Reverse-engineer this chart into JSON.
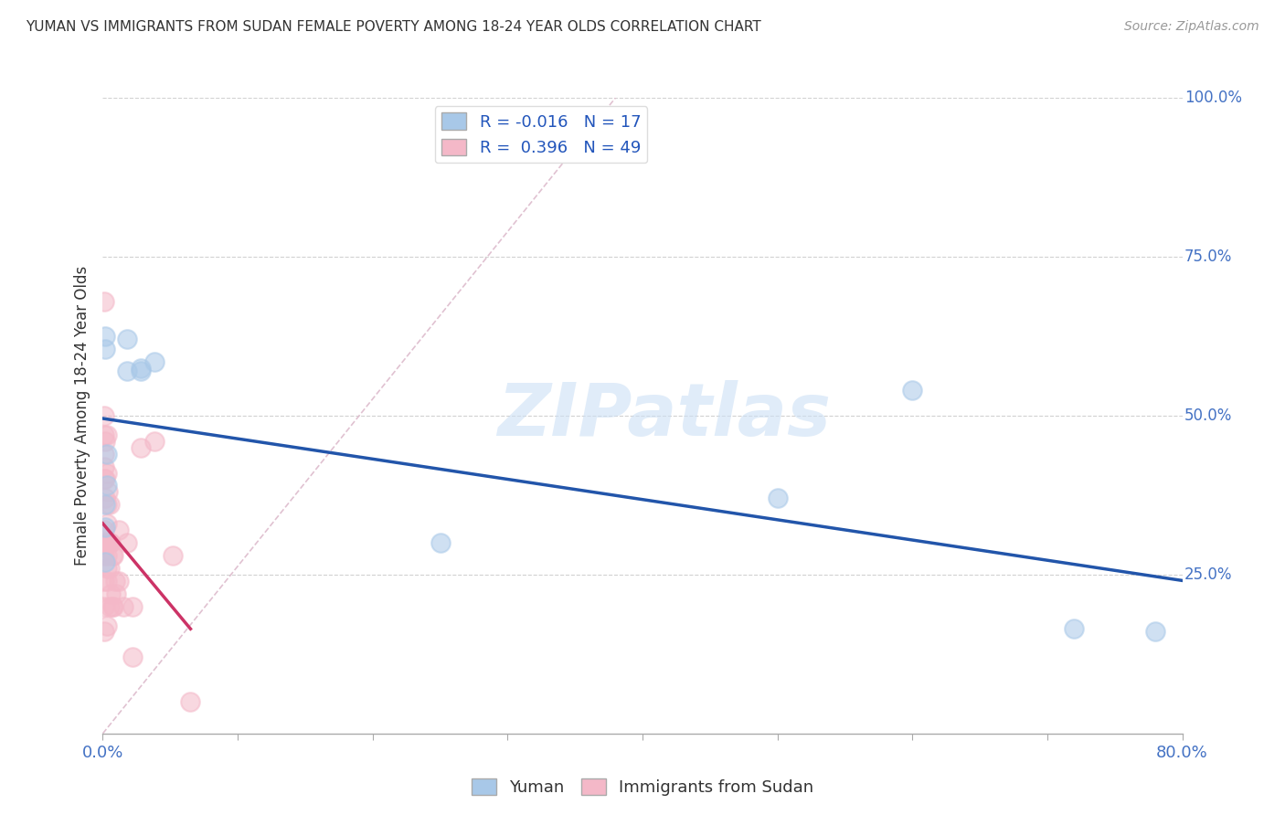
{
  "title": "YUMAN VS IMMIGRANTS FROM SUDAN FEMALE POVERTY AMONG 18-24 YEAR OLDS CORRELATION CHART",
  "source": "Source: ZipAtlas.com",
  "ylabel": "Female Poverty Among 18-24 Year Olds",
  "xlim": [
    0,
    0.8
  ],
  "ylim": [
    0,
    1.0
  ],
  "grid_color": "#cccccc",
  "background_color": "#ffffff",
  "watermark_text": "ZIPatlas",
  "legend_R1": "-0.016",
  "legend_N1": "17",
  "legend_R2": "0.396",
  "legend_N2": "49",
  "color_yuman": "#a8c8e8",
  "color_sudan": "#f4b8c8",
  "line_color_yuman": "#2255aa",
  "line_color_sudan": "#cc3366",
  "diagonal_color": "#ddbbcc",
  "yuman_x": [
    0.002,
    0.002,
    0.002,
    0.002,
    0.002,
    0.003,
    0.003,
    0.018,
    0.018,
    0.028,
    0.028,
    0.038,
    0.25,
    0.5,
    0.6,
    0.72,
    0.78
  ],
  "yuman_y": [
    0.625,
    0.605,
    0.36,
    0.325,
    0.27,
    0.44,
    0.39,
    0.62,
    0.57,
    0.57,
    0.575,
    0.585,
    0.3,
    0.37,
    0.54,
    0.165,
    0.16
  ],
  "sudan_x": [
    0.001,
    0.001,
    0.001,
    0.001,
    0.001,
    0.001,
    0.001,
    0.001,
    0.001,
    0.001,
    0.001,
    0.001,
    0.002,
    0.002,
    0.002,
    0.002,
    0.003,
    0.003,
    0.003,
    0.003,
    0.003,
    0.003,
    0.003,
    0.003,
    0.003,
    0.004,
    0.004,
    0.005,
    0.005,
    0.005,
    0.005,
    0.006,
    0.006,
    0.007,
    0.007,
    0.008,
    0.008,
    0.009,
    0.01,
    0.012,
    0.012,
    0.015,
    0.018,
    0.022,
    0.022,
    0.028,
    0.038,
    0.052,
    0.065
  ],
  "sudan_y": [
    0.68,
    0.5,
    0.47,
    0.44,
    0.42,
    0.4,
    0.32,
    0.3,
    0.28,
    0.24,
    0.2,
    0.16,
    0.46,
    0.4,
    0.37,
    0.3,
    0.47,
    0.41,
    0.36,
    0.33,
    0.3,
    0.28,
    0.26,
    0.24,
    0.17,
    0.38,
    0.3,
    0.36,
    0.3,
    0.26,
    0.2,
    0.3,
    0.22,
    0.28,
    0.2,
    0.28,
    0.2,
    0.24,
    0.22,
    0.32,
    0.24,
    0.2,
    0.3,
    0.2,
    0.12,
    0.45,
    0.46,
    0.28,
    0.05
  ],
  "ytick_right_values": [
    1.0,
    0.75,
    0.5,
    0.25
  ],
  "ytick_right_labels": [
    "100.0%",
    "75.0%",
    "50.0%",
    "25.0%"
  ]
}
